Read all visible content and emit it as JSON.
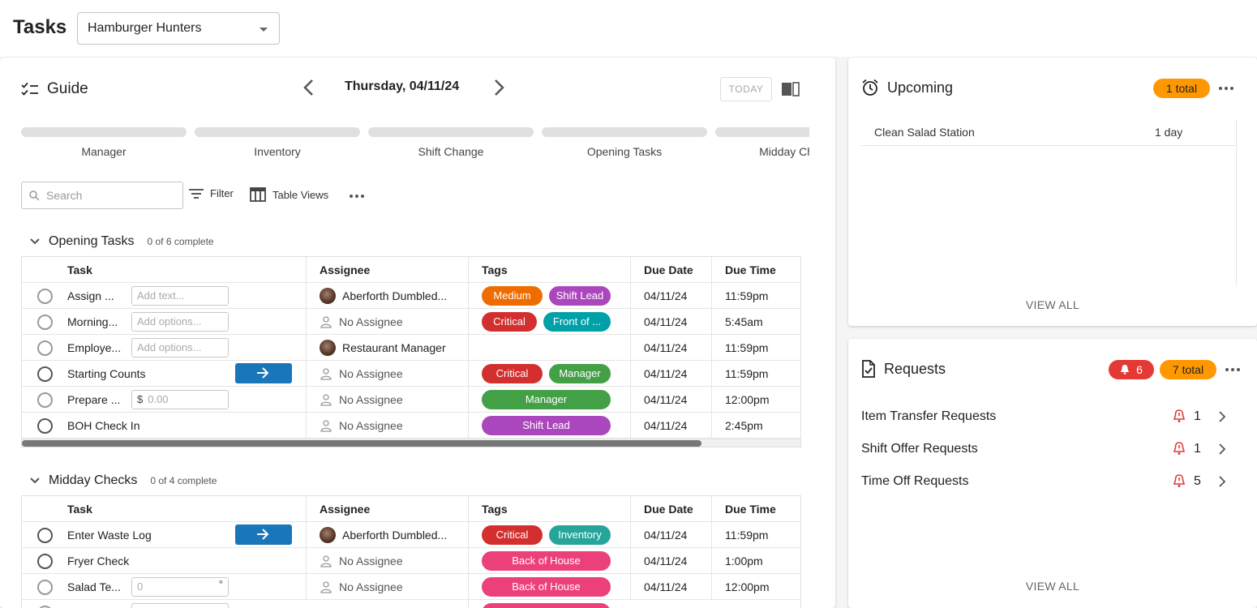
{
  "header": {
    "title": "Tasks",
    "location": "Hamburger Hunters"
  },
  "guide": {
    "title": "Guide",
    "date": "Thursday, 04/11/24",
    "today_label": "TODAY",
    "categories": [
      "Manager",
      "Inventory",
      "Shift Change",
      "Opening Tasks",
      "Midday Checks"
    ],
    "search_placeholder": "Search",
    "filter_label": "Filter",
    "table_views_label": "Table Views"
  },
  "columns": {
    "task": "Task",
    "assignee": "Assignee",
    "tags": "Tags",
    "due_date": "Due Date",
    "due_time": "Due Time"
  },
  "groups": [
    {
      "name": "Opening Tasks",
      "count": "0 of 6 complete",
      "rows": [
        {
          "task": "Assign ...",
          "input": "Add text...",
          "assignee": "Aberforth Dumbled...",
          "tags": [
            "Medium",
            "Shift Lead"
          ],
          "date": "04/11/24",
          "time": "11:59pm"
        },
        {
          "task": "Morning...",
          "input": "Add options...",
          "assignee": "No Assignee",
          "tags": [
            "Critical",
            "Front of ..."
          ],
          "date": "04/11/24",
          "time": "5:45am"
        },
        {
          "task": "Employe...",
          "input": "Add options...",
          "assignee": "Restaurant Manager",
          "tags": [],
          "date": "04/11/24",
          "time": "11:59pm"
        },
        {
          "task": "Starting Counts",
          "assignee": "No Assignee",
          "tags": [
            "Critical",
            "Manager"
          ],
          "date": "04/11/24",
          "time": "11:59pm"
        },
        {
          "task": "Prepare ...",
          "input": "0.00",
          "input_prefix": "$",
          "assignee": "No Assignee",
          "tags": [
            "Manager"
          ],
          "date": "04/11/24",
          "time": "12:00pm"
        },
        {
          "task": "BOH Check In",
          "assignee": "No Assignee",
          "tags": [
            "Shift Lead"
          ],
          "date": "04/11/24",
          "time": "2:45pm"
        }
      ]
    },
    {
      "name": "Midday Checks",
      "count": "0 of 4 complete",
      "rows": [
        {
          "task": "Enter Waste Log",
          "assignee": "Aberforth Dumbled...",
          "tags": [
            "Critical",
            "Inventory"
          ],
          "date": "04/11/24",
          "time": "11:59pm"
        },
        {
          "task": "Fryer Check",
          "assignee": "No Assignee",
          "tags": [
            "Back of House"
          ],
          "date": "04/11/24",
          "time": "1:00pm"
        },
        {
          "task": "Salad Te...",
          "input": "0",
          "input_suffix": "°",
          "assignee": "No Assignee",
          "tags": [
            "Back of House"
          ],
          "date": "04/11/24",
          "time": "12:00pm"
        }
      ]
    }
  ],
  "tag_colors": {
    "Medium": "#ef6c00",
    "Shift Lead": "#ab47bc",
    "Critical": "#d32f2f",
    "Front of ...": "#00a0a8",
    "Manager": "#43a047",
    "Inventory": "#26a69a",
    "Back of House": "#ec407a"
  },
  "upcoming": {
    "title": "Upcoming",
    "badge": "1 total",
    "items": [
      {
        "name": "Clean Salad Station",
        "due": "1 day"
      }
    ],
    "view_all": "VIEW ALL"
  },
  "requests": {
    "title": "Requests",
    "alert_badge": "6",
    "total_badge": "7 total",
    "items": [
      {
        "name": "Item Transfer Requests",
        "count": "1"
      },
      {
        "name": "Shift Offer Requests",
        "count": "1"
      },
      {
        "name": "Time Off Requests",
        "count": "5"
      }
    ],
    "view_all": "VIEW ALL"
  },
  "colors": {
    "accent_blue": "#1976b8",
    "badge_orange": "#ff9800",
    "badge_red": "#e53935"
  }
}
